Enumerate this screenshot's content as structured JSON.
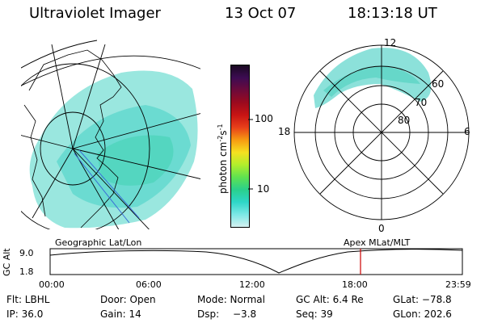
{
  "header": {
    "instrument": "Ultraviolet Imager",
    "date": "13 Oct 07",
    "time": "18:13:18 UT"
  },
  "colorbar": {
    "unit_label": "photon cm",
    "unit_exp1": "-2",
    "unit_s": "s",
    "unit_exp2": "-1",
    "ticks": [
      "100",
      "10"
    ],
    "colors": [
      "#1a0a22",
      "#3d0b52",
      "#6d0a3a",
      "#9b0a1e",
      "#c81414",
      "#e8401a",
      "#f79a12",
      "#f6e020",
      "#b2ee2c",
      "#5fe250",
      "#2ad08c",
      "#2ed6c8",
      "#7ce8e6",
      "#d5f1f1"
    ]
  },
  "left_panel": {
    "caption": "Geographic Lat/Lon"
  },
  "right_panel": {
    "caption": "Apex  MLat/MLT",
    "mlt_labels": {
      "top": "12",
      "left": "18",
      "right": "6",
      "bottom": "0"
    },
    "mlat_labels": [
      "60",
      "70",
      "80"
    ]
  },
  "timeline": {
    "ylabel": "GC Alt",
    "yticks": [
      "9.0",
      "1.8"
    ],
    "xticks": [
      "00:00",
      "06:00",
      "12:00",
      "18:00",
      "23:59"
    ],
    "marker_color": "#cc0000"
  },
  "info": {
    "flt": "Flt: LBHL",
    "door": "Door: Open",
    "mode": "Mode: Normal",
    "gcalt": "GC Alt: 6.4 Re",
    "glat": "GLat: −78.8",
    "ip": "IP: 36.0",
    "gain": "Gain: 14",
    "dsp_label": "Dsp:",
    "dsp_value": "−3.8",
    "seq": "Seq: 39",
    "glon": "GLon: 202.6"
  }
}
